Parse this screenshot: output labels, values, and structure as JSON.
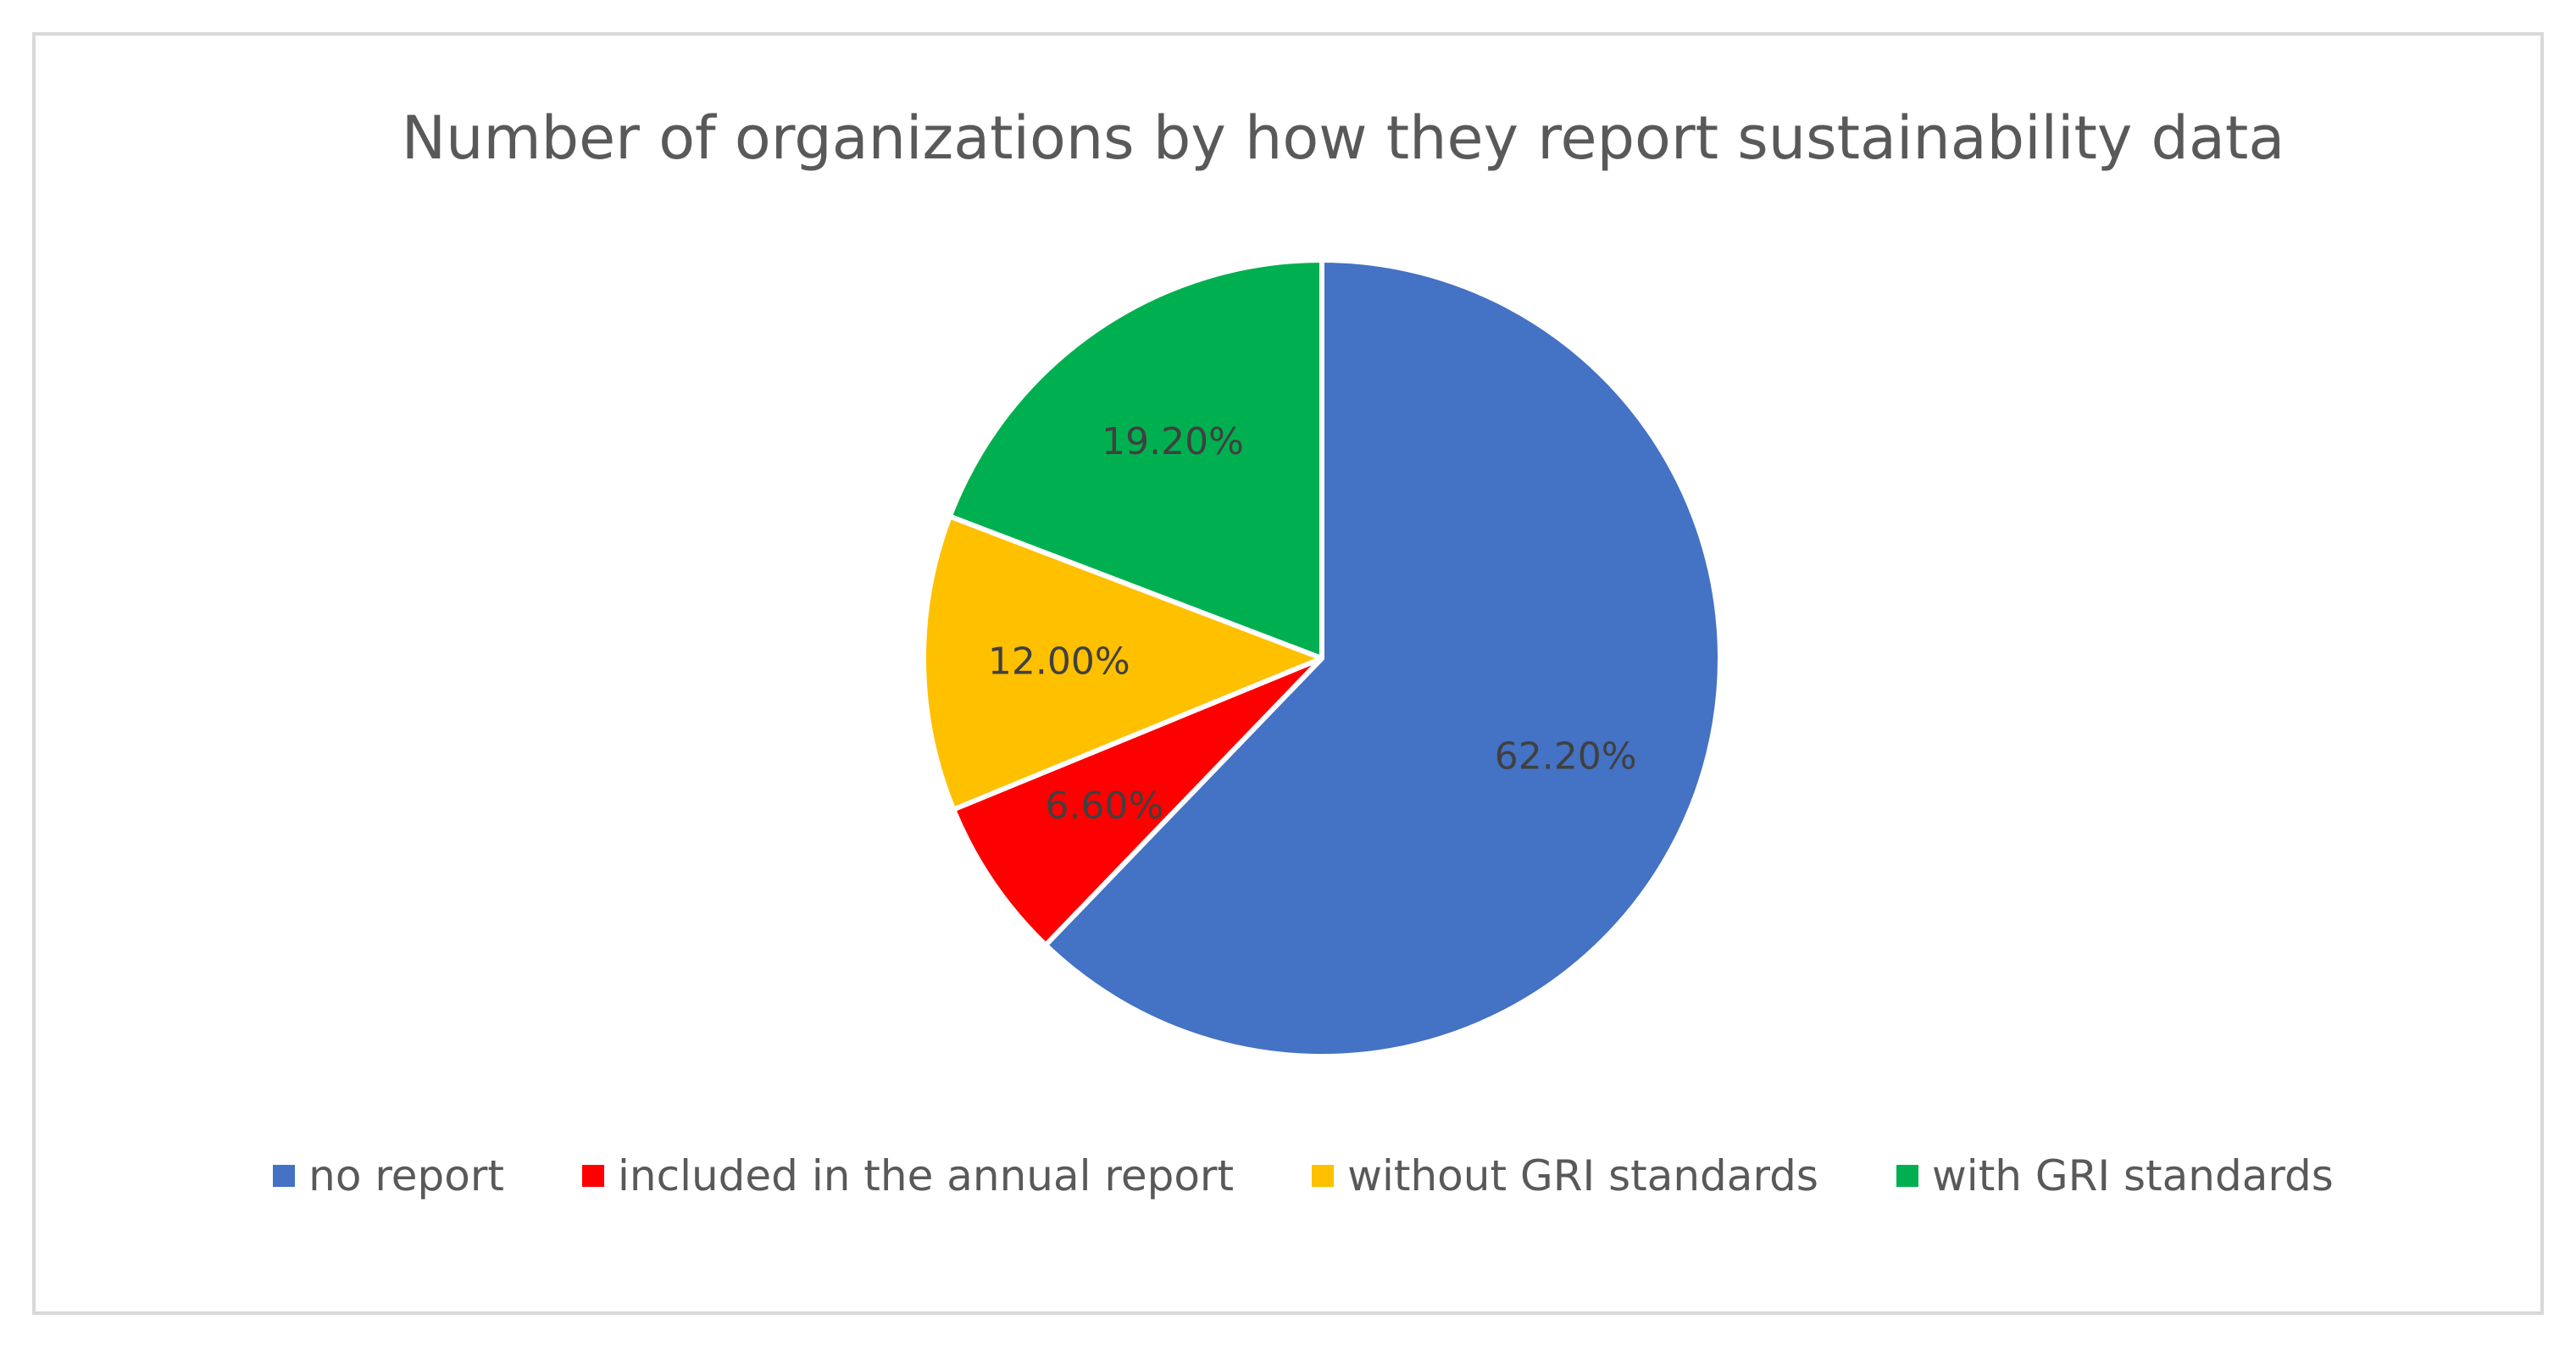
{
  "chart_data": {
    "type": "pie",
    "title": "Number of organizations by how they report sustainability data",
    "legend_position": "bottom",
    "slices": [
      {
        "name": "no report",
        "value": 62.2,
        "label": "62.20%",
        "color": "#4472c4"
      },
      {
        "name": "included in the annual report",
        "value": 6.6,
        "label": "6.60%",
        "color": "#ff0000"
      },
      {
        "name": "without GRI standards",
        "value": 12.0,
        "label": "12.00%",
        "color": "#ffc000"
      },
      {
        "name": "with GRI standards",
        "value": 19.2,
        "label": "19.20%",
        "color": "#00b050"
      }
    ]
  }
}
